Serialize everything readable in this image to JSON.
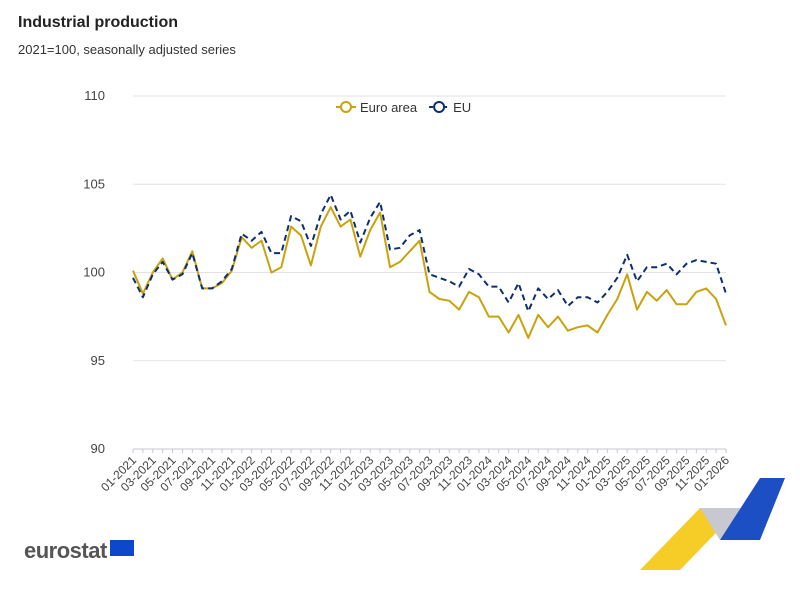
{
  "title": "Industrial production",
  "subtitle": "2021=100, seasonally adjusted series",
  "logo": "eurostat",
  "chart_data": {
    "type": "line",
    "title": "Industrial production",
    "subtitle": "2021=100, seasonally adjusted series",
    "ylim": [
      90,
      110
    ],
    "yticks": [
      90,
      95,
      100,
      105,
      110
    ],
    "grid": true,
    "legend_position": "top-center",
    "x": [
      "01-2021",
      "02-2021",
      "03-2021",
      "04-2021",
      "05-2021",
      "06-2021",
      "07-2021",
      "08-2021",
      "09-2021",
      "10-2021",
      "11-2021",
      "12-2021",
      "01-2022",
      "02-2022",
      "03-2022",
      "04-2022",
      "05-2022",
      "06-2022",
      "07-2022",
      "08-2022",
      "09-2022",
      "10-2022",
      "11-2022",
      "12-2022",
      "01-2023",
      "02-2023",
      "03-2023",
      "04-2023",
      "05-2023",
      "06-2023",
      "07-2023",
      "08-2023",
      "09-2023",
      "10-2023",
      "11-2023",
      "12-2023",
      "01-2024",
      "02-2024",
      "03-2024",
      "04-2024",
      "05-2024",
      "06-2024",
      "07-2024",
      "08-2024",
      "09-2024",
      "10-2024",
      "11-2024",
      "12-2024",
      "01-2025",
      "02-2025",
      "03-2025",
      "04-2025",
      "05-2025",
      "06-2025",
      "07-2025",
      "08-2025",
      "09-2025",
      "10-2025",
      "11-2025",
      "12-2025",
      "01-2026"
    ],
    "series": [
      {
        "name": "Euro area",
        "color": "#c9a20c",
        "style": "solid",
        "values": [
          100.1,
          98.8,
          100.0,
          100.8,
          99.6,
          100.0,
          101.2,
          99.1,
          99.1,
          99.4,
          100.1,
          102.0,
          101.4,
          101.8,
          100.0,
          100.3,
          102.6,
          102.1,
          100.4,
          102.6,
          103.7,
          102.6,
          103.0,
          100.9,
          102.4,
          103.4,
          100.3,
          100.6,
          101.2,
          101.8,
          98.9,
          98.5,
          98.4,
          97.9,
          98.9,
          98.6,
          97.5,
          97.5,
          96.6,
          97.6,
          96.3,
          97.6,
          96.9,
          97.5,
          96.7,
          96.9,
          97.0,
          96.6,
          97.6,
          98.5,
          99.9,
          97.9,
          98.9,
          98.4,
          99.0,
          98.2,
          98.2,
          98.9,
          99.1,
          98.5,
          97.0
        ]
      },
      {
        "name": "EU",
        "color": "#0e2f6e",
        "style": "dashed",
        "values": [
          99.7,
          98.6,
          99.9,
          100.6,
          99.6,
          99.9,
          101.1,
          99.1,
          99.1,
          99.5,
          100.2,
          102.2,
          101.8,
          102.3,
          101.1,
          101.1,
          103.2,
          102.9,
          101.5,
          103.3,
          104.4,
          103.0,
          103.5,
          101.7,
          103.1,
          104.0,
          101.3,
          101.4,
          102.1,
          102.4,
          99.9,
          99.7,
          99.5,
          99.2,
          100.2,
          99.9,
          99.2,
          99.2,
          98.3,
          99.4,
          97.8,
          99.1,
          98.5,
          99.0,
          98.1,
          98.6,
          98.6,
          98.3,
          98.9,
          99.7,
          101.0,
          99.5,
          100.3,
          100.3,
          100.5,
          99.9,
          100.5,
          100.7,
          100.6,
          100.5,
          98.8
        ]
      }
    ]
  }
}
